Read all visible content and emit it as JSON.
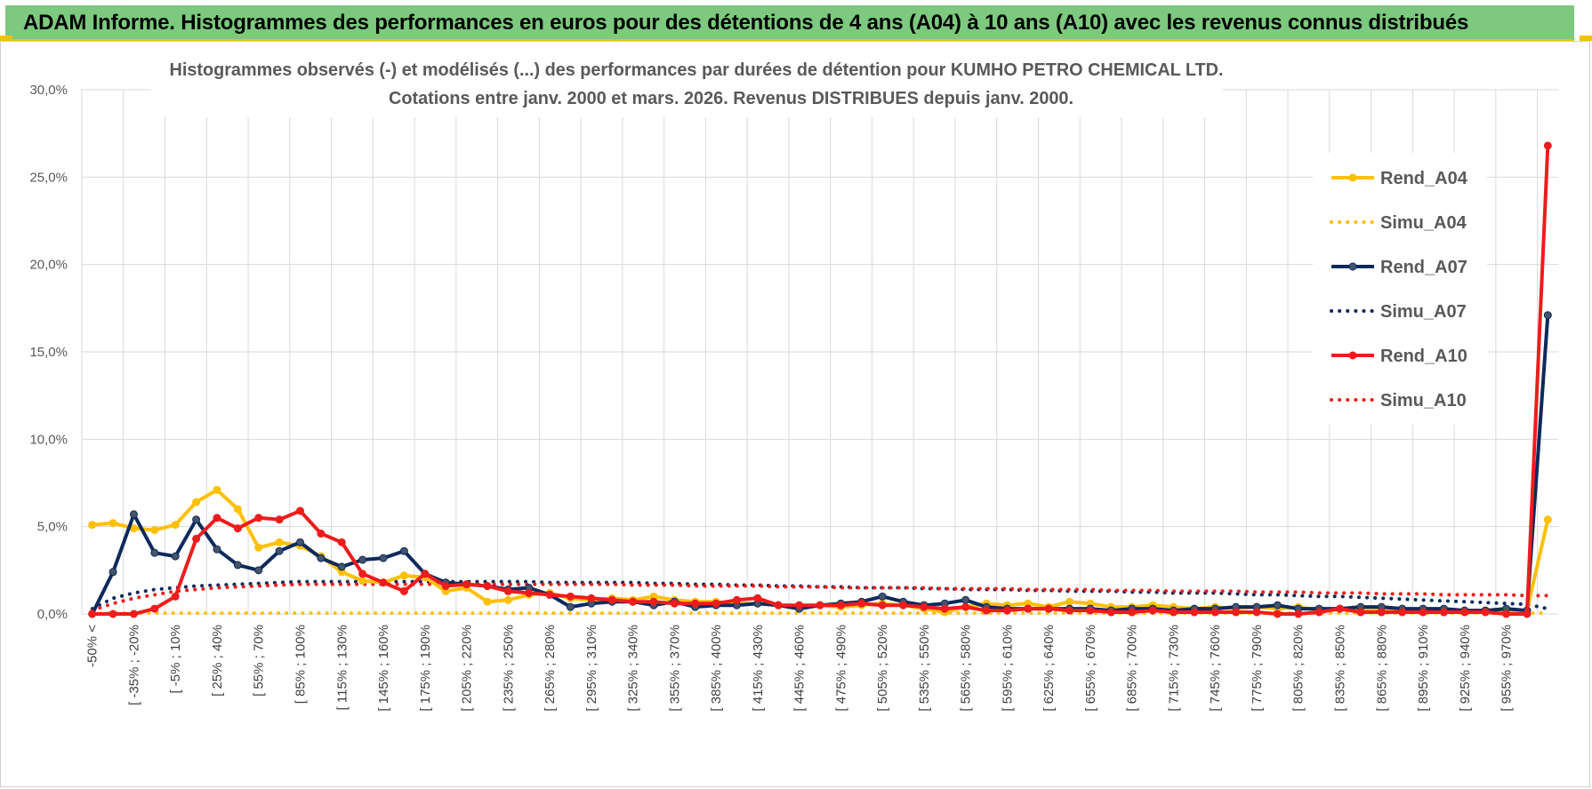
{
  "banner": {
    "title": "ADAM Informe. Histogrammes des performances en euros pour des détentions de 4 ans (A04) à 10 ans (A10) avec les revenus connus distribués"
  },
  "chart_data": {
    "type": "line",
    "title_lines": [
      "Histogrammes observés (-) et modélisés (...) des performances par durées de détention pour KUMHO PETRO CHEMICAL LTD.",
      "Cotations entre janv. 2000 et mars. 2026.  Revenus DISTRIBUES depuis janv. 2000."
    ],
    "xlabel": "",
    "ylabel": "",
    "ylim": [
      0,
      30
    ],
    "y_ticks": [
      0,
      5,
      10,
      15,
      20,
      25,
      30
    ],
    "y_tick_labels": [
      "0,0%",
      "5,0%",
      "10,0%",
      "15,0%",
      "20,0%",
      "25,0%",
      "30,0%"
    ],
    "grid": true,
    "legend_position": "right",
    "category_labels_visible": [
      "-50% <",
      "[ -35% ; -20%",
      "[ -5% ; 10%",
      "[ 25% ; 40%",
      "[ 55% ; 70%",
      "[ 85% ; 100%",
      "[ 115% ; 130%",
      "[ 145% ; 160%",
      "[ 175% ; 190%",
      "[ 205% ; 220%",
      "[ 235% ; 250%",
      "[ 265% ; 280%",
      "[ 295% ; 310%",
      "[ 325% ; 340%",
      "[ 355% ; 370%",
      "[ 385% ; 400%",
      "[ 415% ; 430%",
      "[ 445% ; 460%",
      "[ 475% ; 490%",
      "[ 505% ; 520%",
      "[ 535% ; 550%",
      "[ 565% ; 580%",
      "[ 595% ; 610%",
      "[ 625% ; 640%",
      "[ 655% ; 670%",
      "[ 685% ; 700%",
      "[ 715% ; 730%",
      "[ 745% ; 760%",
      "[ 775% ; 790%",
      "[ 805% ; 820%",
      "[ 835% ; 850%",
      "[ 865% ; 880%",
      "[ 895% ; 910%",
      "[ 925% ; 940%",
      "[ 955% ; 970%"
    ],
    "category_count": 71,
    "series": [
      {
        "name": "Rend_A04",
        "style": "solid",
        "markers": true,
        "color": "#ffc000",
        "marker_color": "#ffc000",
        "values": [
          5.1,
          5.2,
          4.9,
          4.8,
          5.1,
          6.4,
          7.1,
          6.0,
          3.8,
          4.1,
          3.9,
          3.3,
          2.4,
          1.9,
          1.8,
          2.2,
          2.1,
          1.3,
          1.5,
          0.7,
          0.8,
          1.1,
          1.2,
          0.9,
          0.8,
          0.9,
          0.8,
          1.0,
          0.8,
          0.7,
          0.7,
          0.6,
          0.6,
          0.5,
          0.3,
          0.5,
          0.4,
          0.5,
          0.6,
          0.5,
          0.3,
          0.1,
          0.4,
          0.6,
          0.5,
          0.6,
          0.4,
          0.7,
          0.6,
          0.4,
          0.4,
          0.5,
          0.4,
          0.3,
          0.4,
          0.3,
          0.4,
          0.3,
          0.4,
          0.2,
          0.3,
          0.3,
          0.2,
          0.3,
          0.2,
          0.1,
          0.2,
          0.2,
          0.1,
          0.2,
          5.4
        ]
      },
      {
        "name": "Simu_A04",
        "style": "dotted",
        "markers": false,
        "color": "#ffc000",
        "values": [
          0.05,
          0.05,
          0.05,
          0.05,
          0.05,
          0.05,
          0.05,
          0.05,
          0.05,
          0.05,
          0.05,
          0.05,
          0.05,
          0.05,
          0.05,
          0.05,
          0.05,
          0.05,
          0.05,
          0.05,
          0.05,
          0.05,
          0.05,
          0.05,
          0.05,
          0.05,
          0.05,
          0.05,
          0.05,
          0.05,
          0.05,
          0.05,
          0.05,
          0.05,
          0.05,
          0.05,
          0.05,
          0.05,
          0.05,
          0.05,
          0.05,
          0.05,
          0.05,
          0.05,
          0.05,
          0.05,
          0.05,
          0.05,
          0.05,
          0.05,
          0.05,
          0.05,
          0.05,
          0.05,
          0.05,
          0.05,
          0.05,
          0.05,
          0.05,
          0.05,
          0.05,
          0.05,
          0.05,
          0.05,
          0.05,
          0.05,
          0.05,
          0.05,
          0.05,
          0.05,
          0.05
        ]
      },
      {
        "name": "Rend_A07",
        "style": "solid",
        "markers": true,
        "color": "#0e2a5c",
        "marker_color": "#44546a",
        "values": [
          0.0,
          2.4,
          5.7,
          3.5,
          3.3,
          5.4,
          3.7,
          2.8,
          2.5,
          3.6,
          4.1,
          3.2,
          2.7,
          3.1,
          3.2,
          3.6,
          2.3,
          1.8,
          1.7,
          1.6,
          1.4,
          1.5,
          1.1,
          0.4,
          0.6,
          0.7,
          0.7,
          0.5,
          0.7,
          0.4,
          0.5,
          0.5,
          0.6,
          0.5,
          0.3,
          0.5,
          0.6,
          0.7,
          1.0,
          0.7,
          0.5,
          0.6,
          0.8,
          0.4,
          0.3,
          0.3,
          0.3,
          0.3,
          0.3,
          0.2,
          0.3,
          0.3,
          0.2,
          0.3,
          0.3,
          0.4,
          0.4,
          0.5,
          0.3,
          0.3,
          0.3,
          0.4,
          0.4,
          0.3,
          0.3,
          0.3,
          0.2,
          0.2,
          0.3,
          0.2,
          17.1
        ]
      },
      {
        "name": "Simu_A07",
        "style": "dotted",
        "markers": false,
        "color": "#0e2a5c",
        "values": [
          0.3,
          0.9,
          1.2,
          1.4,
          1.5,
          1.6,
          1.65,
          1.7,
          1.75,
          1.8,
          1.85,
          1.85,
          1.85,
          1.85,
          1.85,
          1.85,
          1.85,
          1.85,
          1.85,
          1.85,
          1.85,
          1.85,
          1.8,
          1.8,
          1.8,
          1.8,
          1.8,
          1.75,
          1.75,
          1.7,
          1.7,
          1.65,
          1.65,
          1.6,
          1.6,
          1.55,
          1.55,
          1.5,
          1.5,
          1.5,
          1.45,
          1.45,
          1.4,
          1.4,
          1.4,
          1.35,
          1.35,
          1.3,
          1.3,
          1.3,
          1.25,
          1.25,
          1.2,
          1.2,
          1.2,
          1.15,
          1.1,
          1.1,
          1.05,
          1.0,
          1.0,
          0.95,
          0.9,
          0.85,
          0.8,
          0.75,
          0.7,
          0.65,
          0.6,
          0.55,
          0.3
        ]
      },
      {
        "name": "Rend_A10",
        "style": "solid",
        "markers": true,
        "color": "#ee1c1c",
        "marker_color": "#ee1c1c",
        "values": [
          0.0,
          0.0,
          0.0,
          0.3,
          1.0,
          4.3,
          5.5,
          4.9,
          5.5,
          5.4,
          5.9,
          4.6,
          4.1,
          2.3,
          1.8,
          1.3,
          2.3,
          1.6,
          1.7,
          1.6,
          1.3,
          1.2,
          1.1,
          1.0,
          0.9,
          0.8,
          0.7,
          0.7,
          0.6,
          0.6,
          0.6,
          0.8,
          0.9,
          0.5,
          0.5,
          0.5,
          0.5,
          0.6,
          0.5,
          0.5,
          0.4,
          0.3,
          0.4,
          0.2,
          0.2,
          0.3,
          0.3,
          0.2,
          0.2,
          0.1,
          0.1,
          0.2,
          0.1,
          0.1,
          0.1,
          0.1,
          0.1,
          0.0,
          0.0,
          0.1,
          0.3,
          0.1,
          0.1,
          0.1,
          0.1,
          0.1,
          0.1,
          0.1,
          0.0,
          0.0,
          26.8
        ]
      },
      {
        "name": "Simu_A10",
        "style": "dotted",
        "markers": false,
        "color": "#ee1c1c",
        "values": [
          0.2,
          0.6,
          0.9,
          1.1,
          1.3,
          1.4,
          1.5,
          1.55,
          1.6,
          1.65,
          1.7,
          1.7,
          1.7,
          1.7,
          1.7,
          1.7,
          1.7,
          1.7,
          1.7,
          1.7,
          1.7,
          1.7,
          1.7,
          1.7,
          1.7,
          1.7,
          1.65,
          1.65,
          1.65,
          1.6,
          1.6,
          1.6,
          1.6,
          1.55,
          1.55,
          1.55,
          1.5,
          1.5,
          1.5,
          1.5,
          1.5,
          1.45,
          1.45,
          1.45,
          1.45,
          1.4,
          1.4,
          1.4,
          1.4,
          1.35,
          1.35,
          1.35,
          1.3,
          1.3,
          1.3,
          1.3,
          1.25,
          1.25,
          1.25,
          1.2,
          1.2,
          1.2,
          1.15,
          1.15,
          1.15,
          1.1,
          1.1,
          1.1,
          1.1,
          1.05,
          1.05
        ]
      }
    ]
  }
}
